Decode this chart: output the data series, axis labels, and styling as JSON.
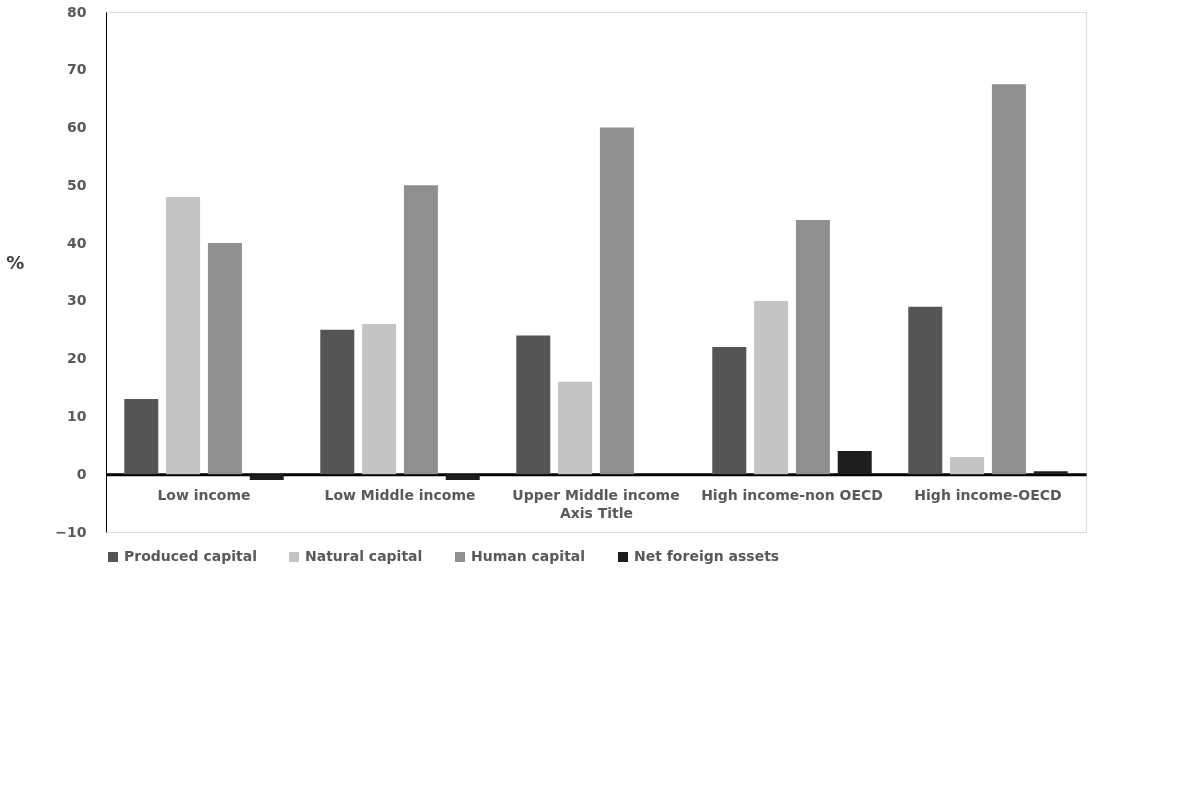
{
  "chart_data": {
    "type": "bar",
    "xlabel": "Axis Title",
    "ylabel": "%",
    "categories": [
      "Low income",
      "Low Middle income",
      "Upper Middle income",
      "High income-non OECD",
      "High income-OECD"
    ],
    "series": [
      {
        "name": "Produced capital",
        "color": "#555555",
        "values": [
          13,
          25,
          24,
          22,
          29
        ]
      },
      {
        "name": "Natural capital",
        "color": "#c4c4c4",
        "values": [
          48,
          26,
          16,
          30,
          3
        ]
      },
      {
        "name": "Human capital",
        "color": "#8f8f8f",
        "values": [
          40,
          50,
          60,
          44,
          67.5
        ]
      },
      {
        "name": "Net foreign assets",
        "color": "#1e1e1e",
        "values": [
          -1,
          -1,
          0,
          4,
          0.5
        ]
      }
    ],
    "ylim": [
      -10,
      80
    ],
    "yticks": [
      -10,
      0,
      10,
      20,
      30,
      40,
      50,
      60,
      70,
      80
    ],
    "grid": false,
    "legend": "bottom"
  }
}
